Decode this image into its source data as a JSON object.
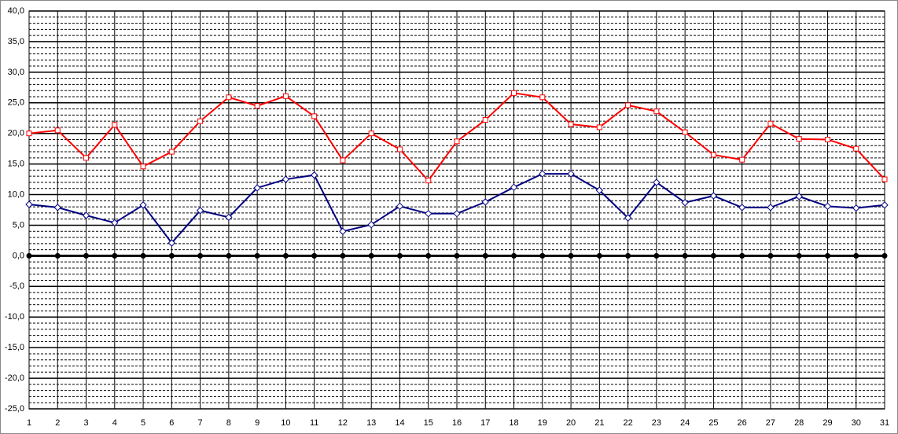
{
  "chart_data": {
    "type": "line",
    "x": [
      1,
      2,
      3,
      4,
      5,
      6,
      7,
      8,
      9,
      10,
      11,
      12,
      13,
      14,
      15,
      16,
      17,
      18,
      19,
      20,
      21,
      22,
      23,
      24,
      25,
      26,
      27,
      28,
      29,
      30,
      31
    ],
    "series": [
      {
        "color": "#ff0000",
        "marker": "square",
        "values": [
          20.0,
          20.5,
          16.0,
          21.4,
          14.6,
          17.0,
          22.0,
          25.9,
          24.5,
          26.1,
          22.8,
          15.6,
          20.0,
          17.4,
          12.3,
          18.7,
          22.2,
          26.6,
          25.9,
          21.5,
          21.0,
          24.6,
          23.6,
          20.2,
          16.5,
          15.7,
          21.6,
          19.1,
          19.0,
          17.5,
          12.5
        ]
      },
      {
        "color": "#000080",
        "marker": "diamond",
        "values": [
          8.4,
          7.9,
          6.6,
          5.4,
          8.3,
          2.1,
          7.4,
          6.3,
          11.1,
          12.5,
          13.2,
          4.0,
          5.1,
          8.1,
          6.9,
          6.9,
          8.8,
          11.2,
          13.4,
          13.4,
          10.7,
          6.2,
          12.0,
          8.7,
          9.8,
          7.9,
          7.9,
          9.7,
          8.1,
          7.8,
          8.3
        ]
      },
      {
        "color": "#000000",
        "marker": "circle",
        "values": [
          0,
          0,
          0,
          0,
          0,
          0,
          0,
          0,
          0,
          0,
          0,
          0,
          0,
          0,
          0,
          0,
          0,
          0,
          0,
          0,
          0,
          0,
          0,
          0,
          0,
          0,
          0,
          0,
          0,
          0,
          0
        ]
      }
    ],
    "xlim": [
      1,
      31
    ],
    "ylim": [
      -25,
      40
    ],
    "yticks": [
      {
        "value": -25,
        "label": "-25,0"
      },
      {
        "value": -20,
        "label": "-20,0"
      },
      {
        "value": -15,
        "label": "-15,0"
      },
      {
        "value": -10,
        "label": "-10,0"
      },
      {
        "value": -5,
        "label": "-5,0"
      },
      {
        "value": 0,
        "label": "0,0"
      },
      {
        "value": 5,
        "label": "5,0"
      },
      {
        "value": 10,
        "label": "10,0"
      },
      {
        "value": 15,
        "label": "15,0"
      },
      {
        "value": 20,
        "label": "20,0"
      },
      {
        "value": 25,
        "label": "25,0"
      },
      {
        "value": 30,
        "label": "30,0"
      },
      {
        "value": 35,
        "label": "35,0"
      },
      {
        "value": 40,
        "label": "40,0"
      }
    ],
    "grid": true,
    "minor_grid": true
  }
}
